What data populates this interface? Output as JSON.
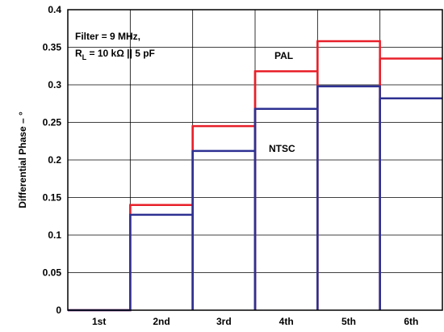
{
  "chart_data": {
    "type": "step",
    "ylabel": "Differential Phase – °",
    "ylim": [
      0,
      0.4
    ],
    "yticks": [
      "0",
      "0.05",
      "0.1",
      "0.15",
      "0.2",
      "0.25",
      "0.3",
      "0.35",
      "0.4"
    ],
    "yticks_values": [
      0,
      0.05,
      0.1,
      0.15,
      0.2,
      0.25,
      0.3,
      0.35,
      0.4
    ],
    "categories": [
      "1st",
      "2nd",
      "3rd",
      "4th",
      "5th",
      "6th"
    ],
    "grid": true,
    "annotation": {
      "line1": "Filter = 9 MHz,",
      "line2_prefix": "R",
      "line2_sub": "L",
      "line2_suffix": " = 10 kΩ || 5 pF"
    },
    "series": [
      {
        "name": "PAL",
        "color": "#e8202a",
        "values": [
          0.0,
          0.14,
          0.245,
          0.318,
          0.358,
          0.335
        ]
      },
      {
        "name": "NTSC",
        "color": "#2e3192",
        "values": [
          0.0,
          0.127,
          0.212,
          0.268,
          0.298,
          0.282
        ]
      }
    ]
  }
}
